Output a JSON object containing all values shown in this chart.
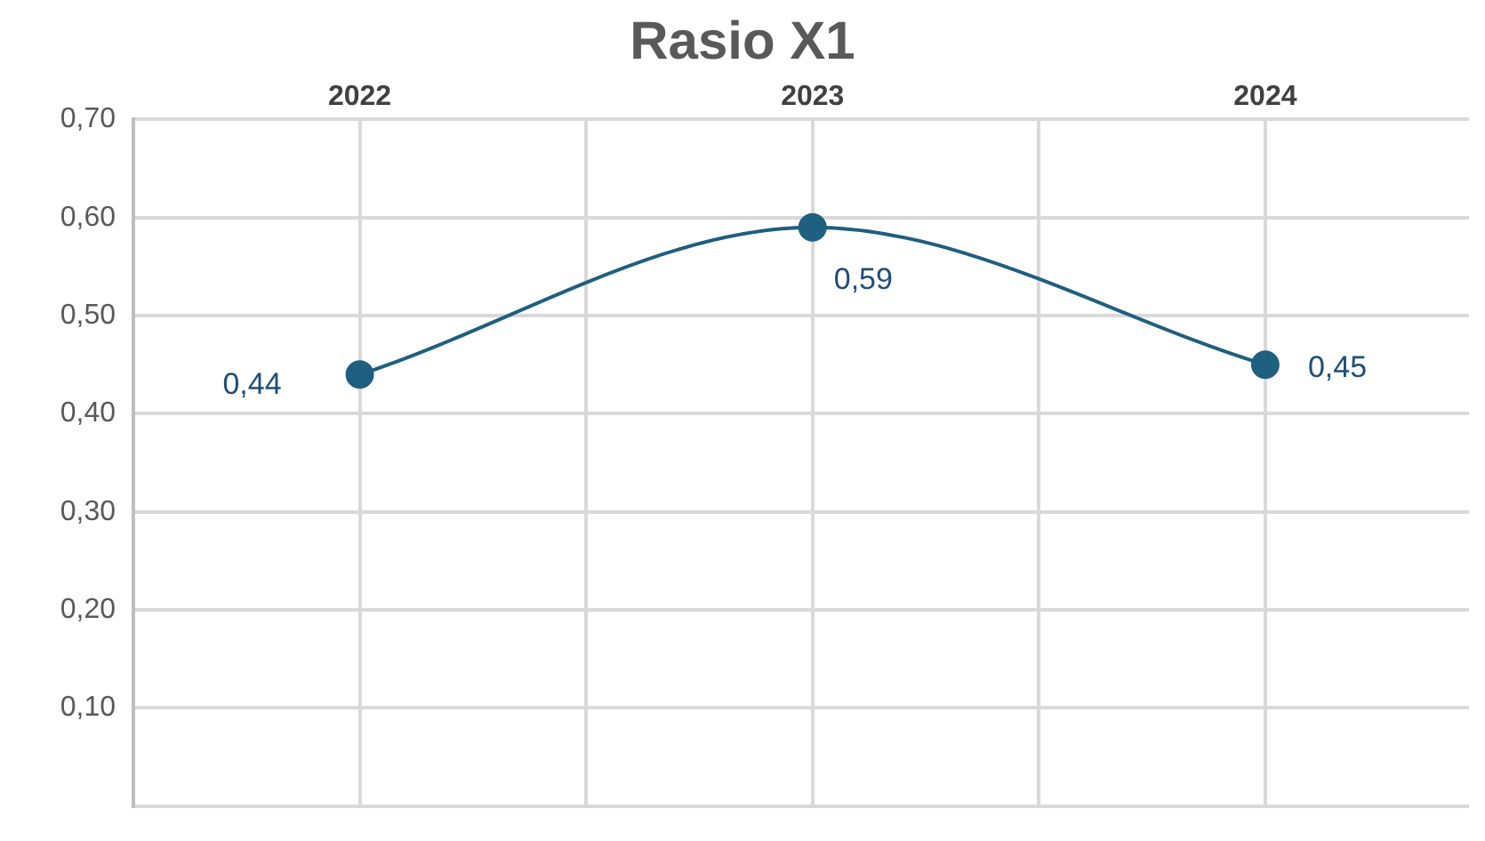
{
  "chart_data": {
    "type": "line",
    "title": "Rasio X1",
    "x": [
      2022,
      2023,
      2024
    ],
    "series": [
      {
        "color": "#1f5f7f",
        "values": [
          0.44,
          0.59,
          0.45
        ]
      }
    ],
    "value_labels": [
      "0,44",
      "0,59",
      "0,45"
    ],
    "xlim": [
      2021.5,
      2024.45
    ],
    "xticks": [
      {
        "value": 2021.5,
        "label": null
      },
      2022,
      {
        "value": 2022.5,
        "label": null
      },
      2023,
      {
        "value": 2023.5,
        "label": null
      },
      2024
    ],
    "ylim": [
      0,
      0.7
    ],
    "yticks": [
      {
        "value": 0,
        "label": null
      },
      {
        "value": 0.1,
        "label": "0,10"
      },
      {
        "value": 0.2,
        "label": "0,20"
      },
      {
        "value": 0.3,
        "label": "0,30"
      },
      {
        "value": 0.4,
        "label": "0,40"
      },
      {
        "value": 0.5,
        "label": "0,50"
      },
      {
        "value": 0.6,
        "label": "0,60"
      },
      {
        "value": 0.7,
        "label": "0,70"
      }
    ],
    "grid": true,
    "legend": false,
    "marker": "circle",
    "line_style": "solid"
  }
}
